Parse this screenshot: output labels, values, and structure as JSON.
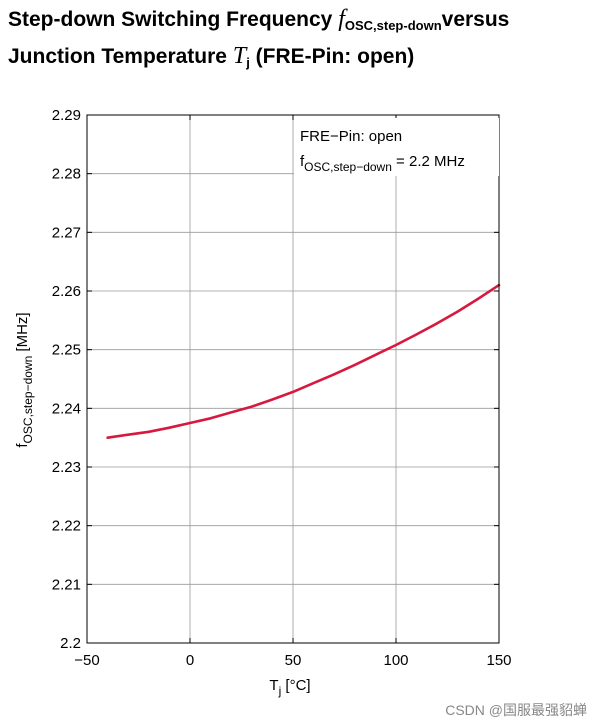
{
  "title": {
    "line1_text": "Step-down Switching Frequency ",
    "line1_symbol": "f",
    "line1_subscript": "OSC,step-down",
    "line1_tail": "versus",
    "line2_text": "Junction Temperature ",
    "line2_symbol": "T",
    "line2_subscript": "j",
    "line2_tail": " (FRE-Pin: open)"
  },
  "watermark": "CSDN @国服最强貂蝉",
  "chart_data": {
    "type": "line",
    "xlabel": {
      "main": "T",
      "sub": "j",
      "unit": " [°C]"
    },
    "ylabel": {
      "main": "f",
      "sub": "OSC,step−down",
      "unit": " [MHz]"
    },
    "xlim": [
      -50,
      150
    ],
    "ylim": [
      2.2,
      2.29
    ],
    "x_ticks": [
      -50,
      0,
      50,
      100,
      150
    ],
    "x_tick_labels": [
      "−50",
      "0",
      "50",
      "100",
      "150"
    ],
    "y_ticks": [
      2.2,
      2.21,
      2.22,
      2.23,
      2.24,
      2.25,
      2.26,
      2.27,
      2.28,
      2.29
    ],
    "y_tick_labels": [
      "2.2",
      "2.21",
      "2.22",
      "2.23",
      "2.24",
      "2.25",
      "2.26",
      "2.27",
      "2.28",
      "2.29"
    ],
    "grid": true,
    "annotation": {
      "line1": "FRE−Pin: open",
      "line2_main": "f",
      "line2_sub": "OSC,step−down",
      "line2_tail": " = 2.2 MHz",
      "placement": "top-right"
    },
    "series": [
      {
        "color": "#d7193f",
        "x": [
          -40,
          -30,
          -20,
          -10,
          0,
          10,
          20,
          30,
          40,
          50,
          60,
          70,
          80,
          90,
          100,
          110,
          120,
          130,
          140,
          150
        ],
        "y": [
          2.235,
          2.2355,
          2.236,
          2.2367,
          2.2375,
          2.2383,
          2.2393,
          2.2403,
          2.2415,
          2.2428,
          2.2443,
          2.2458,
          2.2474,
          2.2491,
          2.2508,
          2.2526,
          2.2545,
          2.2565,
          2.2587,
          2.261
        ]
      }
    ]
  }
}
